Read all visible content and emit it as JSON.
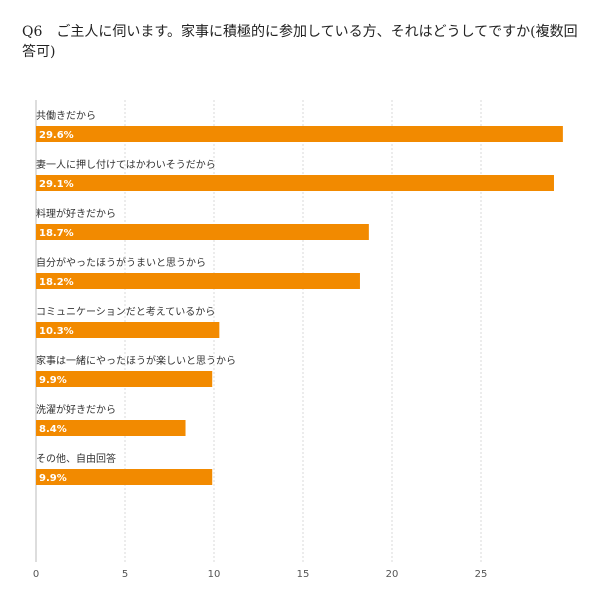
{
  "header": {
    "title": "Q6　ご主人に伺います。家事に積極的に参加している方、それはどうしてですか(複数回答可)"
  },
  "chart_data": {
    "type": "bar",
    "orientation": "horizontal",
    "categories": [
      "共働きだから",
      "妻一人に押し付けてはかわいそうだから",
      "料理が好きだから",
      "自分がやったほうがうまいと思うから",
      "コミュニケーションだと考えているから",
      "家事は一緒にやったほうが楽しいと思うから",
      "洗濯が好きだから",
      "その他、自由回答"
    ],
    "values": [
      29.6,
      29.1,
      18.7,
      18.2,
      10.3,
      9.9,
      8.4,
      9.9
    ],
    "value_labels": [
      "29.6%",
      "29.1%",
      "18.7%",
      "18.2%",
      "10.3%",
      "9.9%",
      "8.4%",
      "9.9%"
    ],
    "xlim": [
      0,
      30
    ],
    "xticks": [
      0,
      5,
      10,
      15,
      20,
      25
    ],
    "grid": true,
    "bar_color": "#f28a00"
  }
}
